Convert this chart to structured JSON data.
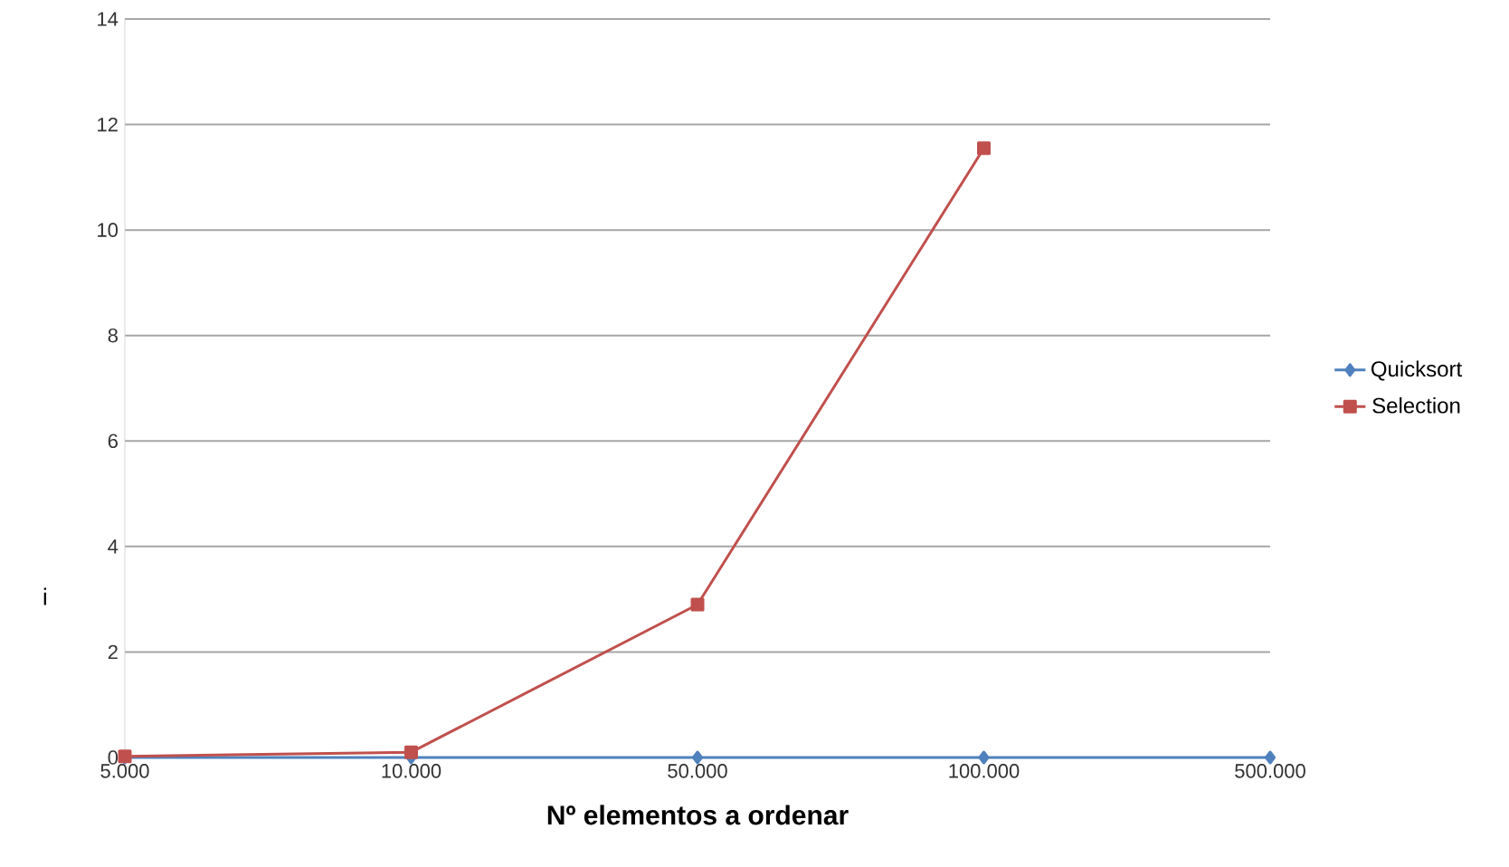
{
  "chart_data": {
    "type": "line",
    "xlabel": "Nº elementos a ordenar",
    "ylabel": "i",
    "categories": [
      "5.000",
      "10.000",
      "50.000",
      "100.000",
      "500.000"
    ],
    "series": [
      {
        "name": "Quicksort",
        "color": "#4f81bd",
        "marker": "diamond",
        "values": [
          0,
          0,
          0,
          0,
          0
        ]
      },
      {
        "name": "Selection",
        "color": "#c0504d",
        "marker": "square",
        "values": [
          0.02,
          0.1,
          2.9,
          11.55,
          null
        ]
      }
    ],
    "ylim": [
      0,
      14
    ],
    "yticks": [
      0,
      2,
      4,
      6,
      8,
      10,
      12,
      14
    ],
    "grid": "y",
    "legend": "right",
    "line_style": "solid"
  }
}
